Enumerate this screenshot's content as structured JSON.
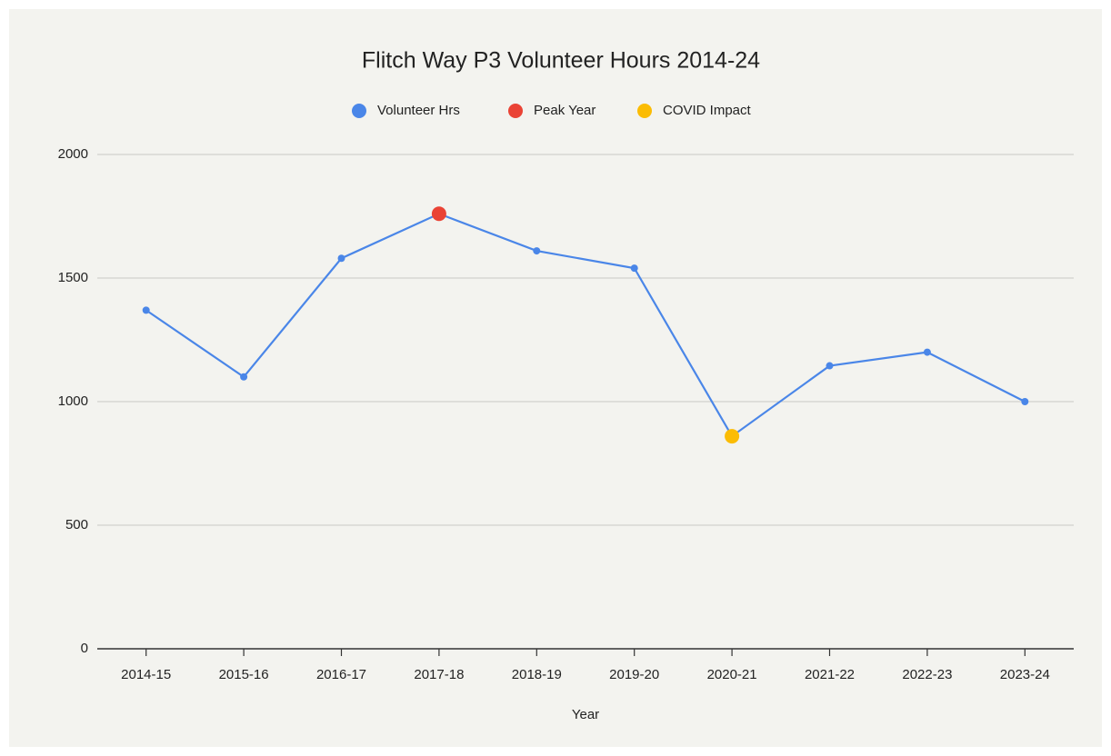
{
  "chart_data": {
    "type": "line",
    "title": "Flitch Way P3 Volunteer Hours 2014-24",
    "xlabel": "Year",
    "categories": [
      "2014-15",
      "2015-16",
      "2016-17",
      "2017-18",
      "2018-19",
      "2019-20",
      "2020-21",
      "2021-22",
      "2022-23",
      "2023-24"
    ],
    "series": [
      {
        "name": "Volunteer Hrs",
        "color": "#4a86e8",
        "values": [
          1370,
          1100,
          1580,
          1760,
          1610,
          1540,
          860,
          1145,
          1200,
          1000
        ]
      },
      {
        "name": "Peak Year",
        "color": "#ea4335",
        "values": [
          null,
          null,
          null,
          1760,
          null,
          null,
          null,
          null,
          null,
          null
        ]
      },
      {
        "name": "COVID Impact",
        "color": "#fbbc04",
        "values": [
          null,
          null,
          null,
          null,
          null,
          null,
          860,
          null,
          null,
          null
        ]
      }
    ],
    "ylim": [
      0,
      2000
    ],
    "yticks": [
      0,
      500,
      1000,
      1500,
      2000
    ],
    "grid": true,
    "legend": "top"
  }
}
